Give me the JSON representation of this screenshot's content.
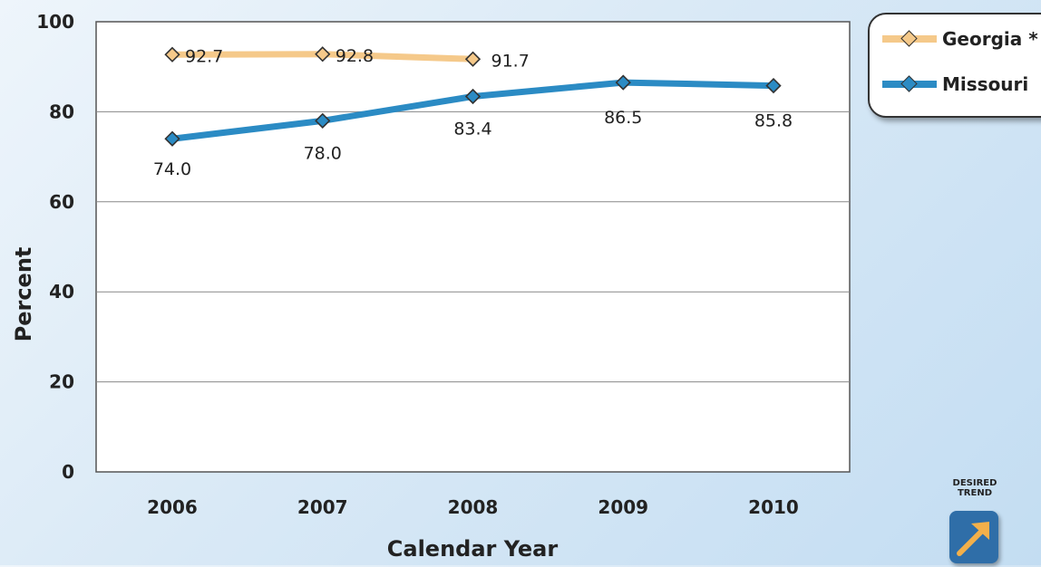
{
  "chart_data": {
    "type": "line",
    "xlabel": "Calendar Year",
    "ylabel": "Percent",
    "ylim": [
      0,
      100
    ],
    "yticks": [
      "0",
      "20",
      "40",
      "60",
      "80",
      "100"
    ],
    "categories": [
      "2006",
      "2007",
      "2008",
      "2009",
      "2010"
    ],
    "grid": true,
    "legend_position": "top-right",
    "series": [
      {
        "name": "Georgia *",
        "color": "#f5c98a",
        "values": [
          92.7,
          92.8,
          91.7,
          null,
          null
        ],
        "labels": [
          "92.7",
          "92.8",
          "91.7",
          null,
          null
        ]
      },
      {
        "name": "Missouri",
        "color": "#2b8bc4",
        "values": [
          74.0,
          78.0,
          83.4,
          86.5,
          85.8
        ],
        "labels": [
          "74.0",
          "78.0",
          "83.4",
          "86.5",
          "85.8"
        ]
      }
    ]
  },
  "badge": {
    "line1": "DESIRED",
    "line2": "TREND",
    "icon": "up-right-arrow-icon"
  }
}
